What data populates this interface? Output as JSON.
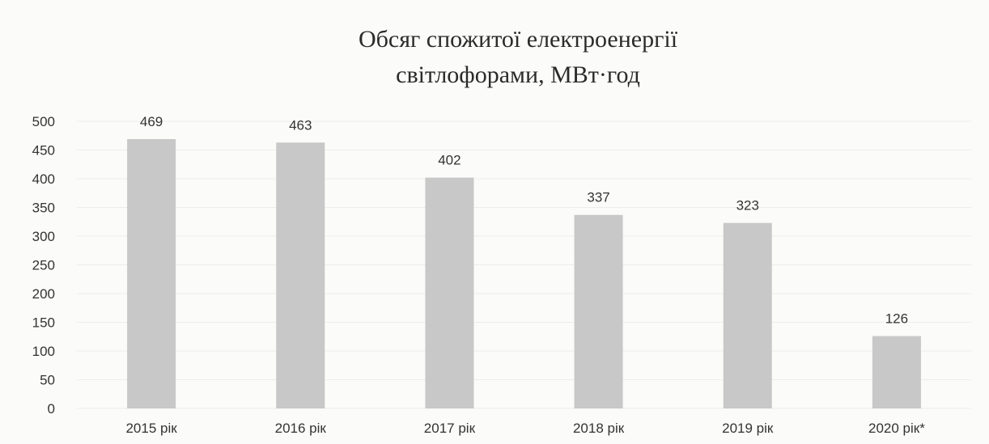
{
  "chart_data": {
    "type": "bar",
    "title_lines": [
      "Обсяг спожитої електроенергії",
      "світлофорами, МВт·год"
    ],
    "categories": [
      "2015 рік",
      "2016 рік",
      "2017 рік",
      "2018 рік",
      "2019 рік",
      "2020 рік*"
    ],
    "values": [
      469,
      463,
      402,
      337,
      323,
      126
    ],
    "ylim": [
      0,
      500
    ],
    "yticks": [
      0,
      50,
      100,
      150,
      200,
      250,
      300,
      350,
      400,
      450,
      500
    ],
    "grid": true,
    "legend": "none",
    "bar_color": "#c8c8c8"
  }
}
